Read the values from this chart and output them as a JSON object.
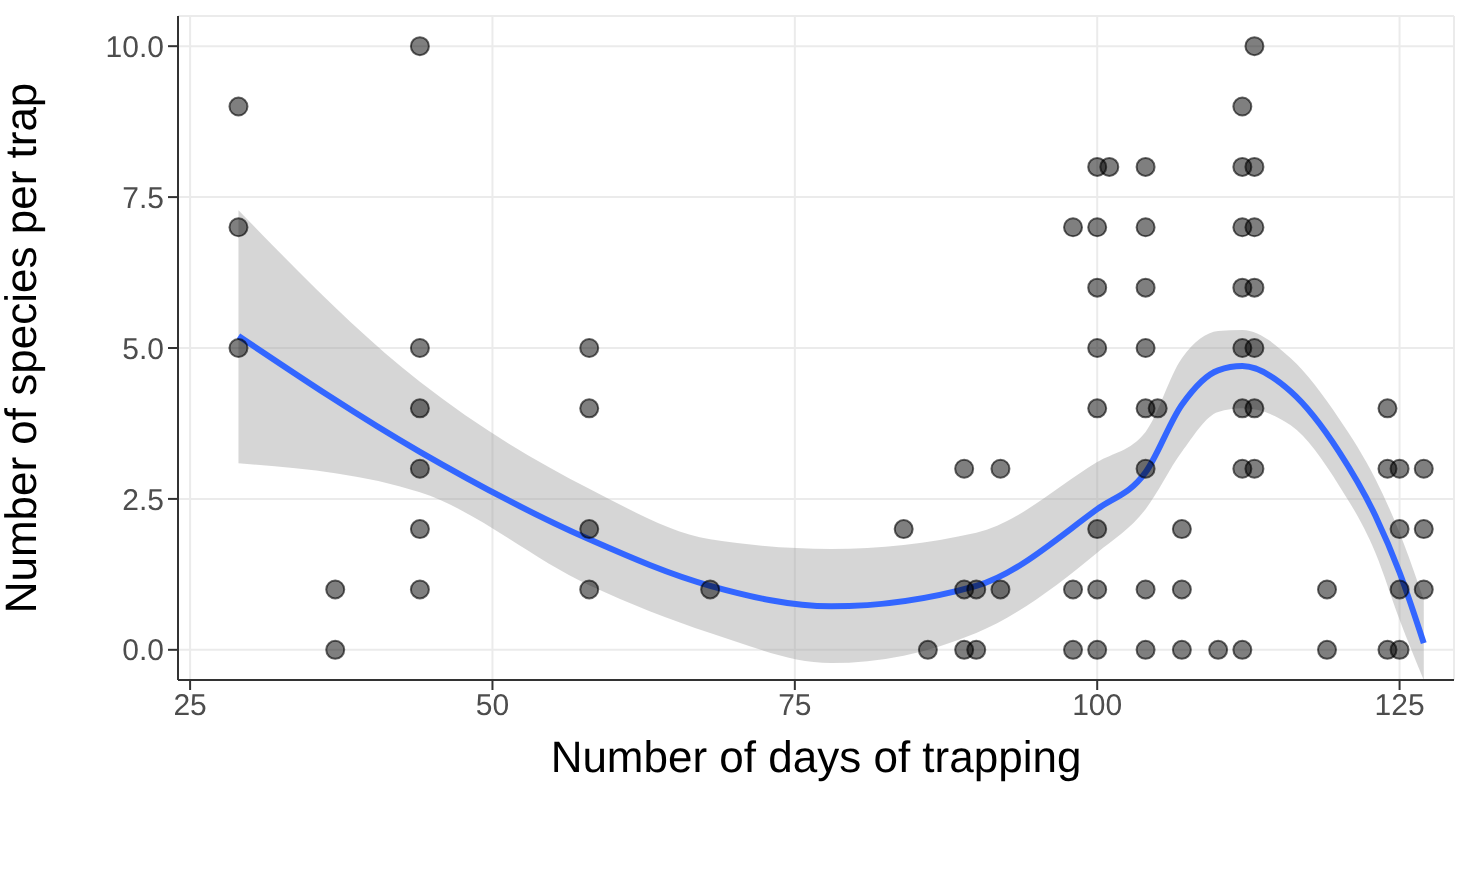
{
  "chart_data": {
    "type": "scatter",
    "xlabel": "Number of days of trapping",
    "ylabel": "Number of species per trap",
    "xlim": [
      24,
      129.5
    ],
    "ylim": [
      -0.5,
      10.5
    ],
    "xticks": [
      25,
      50,
      75,
      100,
      125
    ],
    "yticks": [
      {
        "value": 0,
        "label": "0.0"
      },
      2.5,
      {
        "value": 5,
        "label": "5.0"
      },
      7.5,
      {
        "value": 10,
        "label": "10.0"
      }
    ],
    "grid": true,
    "legend": false,
    "series": [
      {
        "color": "#000000",
        "marker": "circle",
        "x": [
          29,
          29,
          29,
          37,
          37,
          44,
          44,
          44,
          44,
          44,
          44,
          58,
          58,
          58,
          58,
          68,
          84,
          86,
          89,
          89,
          89,
          90,
          90,
          92,
          92,
          98,
          98,
          98,
          100,
          100,
          100,
          100,
          100,
          100,
          100,
          100,
          101,
          104,
          104,
          104,
          104,
          104,
          104,
          104,
          104,
          105,
          107,
          107,
          107,
          110,
          112,
          112,
          112,
          112,
          112,
          112,
          112,
          112,
          113,
          113,
          113,
          113,
          113,
          113,
          113,
          119,
          119,
          124,
          124,
          124,
          125,
          125,
          125,
          125,
          127,
          127,
          127
        ],
        "values": [
          9,
          7,
          5,
          1,
          0,
          10,
          5,
          4,
          3,
          2,
          1,
          5,
          4,
          2,
          1,
          1,
          2,
          0,
          3,
          1,
          0,
          1,
          0,
          3,
          1,
          7,
          1,
          0,
          8,
          7,
          6,
          5,
          4,
          2,
          1,
          0,
          8,
          8,
          7,
          6,
          5,
          4,
          3,
          1,
          0,
          4,
          2,
          1,
          0,
          0,
          9,
          8,
          7,
          6,
          5,
          4,
          3,
          0,
          10,
          8,
          7,
          6,
          5,
          4,
          3,
          1,
          0,
          4,
          3,
          0,
          3,
          2,
          1,
          0,
          3,
          2,
          1
        ]
      },
      {
        "type": "line",
        "color": "#3366ff",
        "x": [
          29,
          44,
          58,
          68,
          78,
          90,
          100,
          104,
          107,
          110,
          112,
          116,
          120,
          123,
          125,
          127
        ],
        "values": [
          5.2,
          3.28,
          1.83,
          1.06,
          0.72,
          1.06,
          2.33,
          2.94,
          4.06,
          4.63,
          4.7,
          4.28,
          3.28,
          2.22,
          1.28,
          0.11
        ],
        "lower": [
          3.09,
          2.61,
          1.07,
          0.28,
          -0.22,
          0.28,
          1.61,
          2.33,
          3.28,
          3.94,
          4.0,
          3.72,
          2.72,
          1.61,
          0.5,
          -0.5
        ],
        "upper": [
          7.28,
          4.44,
          2.67,
          1.83,
          1.67,
          1.94,
          3.11,
          3.61,
          4.83,
          5.28,
          5.3,
          4.83,
          3.83,
          2.83,
          1.94,
          0.83
        ]
      }
    ]
  }
}
